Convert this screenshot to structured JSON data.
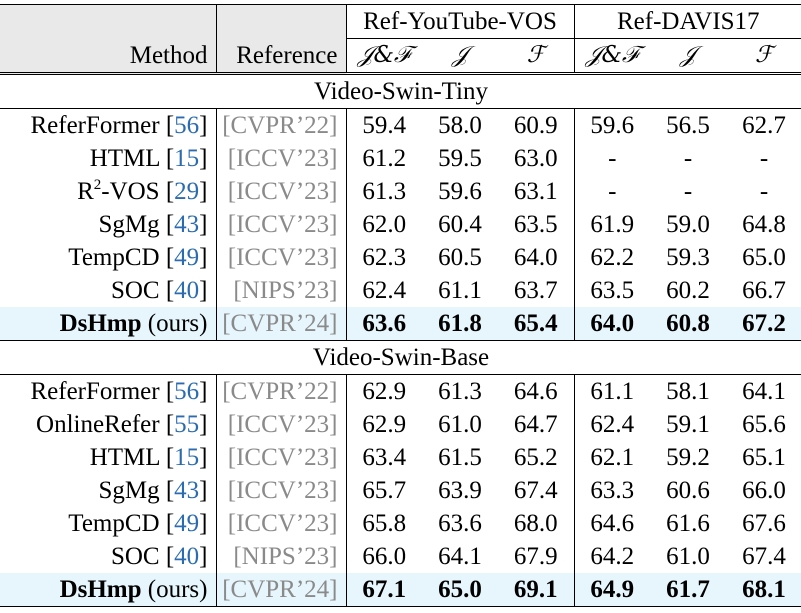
{
  "header": {
    "method": "Method",
    "reference": "Reference",
    "datasets": [
      "Ref-YouTube-VOS",
      "Ref-DAVIS17"
    ],
    "metrics": [
      "𝒥&ℱ",
      "𝒥",
      "ℱ",
      "𝒥&ℱ",
      "𝒥",
      "ℱ"
    ]
  },
  "groups": [
    {
      "label": "Video-Swin-Tiny",
      "rows": [
        {
          "method": "ReferFormer",
          "cite": "56",
          "ref": "[CVPR’22]",
          "vals": [
            "59.4",
            "58.0",
            "60.9",
            "59.6",
            "56.5",
            "62.7"
          ]
        },
        {
          "method": "HTML",
          "cite": "15",
          "ref": "[ICCV’23]",
          "vals": [
            "61.2",
            "59.5",
            "63.0",
            "-",
            "-",
            "-"
          ]
        },
        {
          "method_pre": "R",
          "method_sup": "2",
          "method": "-VOS",
          "cite": "29",
          "ref": "[ICCV’23]",
          "vals": [
            "61.3",
            "59.6",
            "63.1",
            "-",
            "-",
            "-"
          ]
        },
        {
          "method": "SgMg",
          "cite": "43",
          "ref": "[ICCV’23]",
          "vals": [
            "62.0",
            "60.4",
            "63.5",
            "61.9",
            "59.0",
            "64.8"
          ]
        },
        {
          "method": "TempCD",
          "cite": "49",
          "ref": "[ICCV’23]",
          "vals": [
            "62.3",
            "60.5",
            "64.0",
            "62.2",
            "59.3",
            "65.0"
          ]
        },
        {
          "method": "SOC",
          "cite": "40",
          "ref": "[NIPS’23]",
          "vals": [
            "62.4",
            "61.1",
            "63.7",
            "63.5",
            "60.2",
            "66.7"
          ]
        }
      ],
      "ours": {
        "method": "DsHmp",
        "suffix": "(ours)",
        "ref": "[CVPR’24]",
        "vals": [
          "63.6",
          "61.8",
          "65.4",
          "64.0",
          "60.8",
          "67.2"
        ]
      }
    },
    {
      "label": "Video-Swin-Base",
      "rows": [
        {
          "method": "ReferFormer",
          "cite": "56",
          "ref": "[CVPR’22]",
          "vals": [
            "62.9",
            "61.3",
            "64.6",
            "61.1",
            "58.1",
            "64.1"
          ]
        },
        {
          "method": "OnlineRefer",
          "cite": "55",
          "ref": "[ICCV’23]",
          "vals": [
            "62.9",
            "61.0",
            "64.7",
            "62.4",
            "59.1",
            "65.6"
          ]
        },
        {
          "method": "HTML",
          "cite": "15",
          "ref": "[ICCV’23]",
          "vals": [
            "63.4",
            "61.5",
            "65.2",
            "62.1",
            "59.2",
            "65.1"
          ]
        },
        {
          "method": "SgMg",
          "cite": "43",
          "ref": "[ICCV’23]",
          "vals": [
            "65.7",
            "63.9",
            "67.4",
            "63.3",
            "60.6",
            "66.0"
          ]
        },
        {
          "method": "TempCD",
          "cite": "49",
          "ref": "[ICCV’23]",
          "vals": [
            "65.8",
            "63.6",
            "68.0",
            "64.6",
            "61.6",
            "67.6"
          ]
        },
        {
          "method": "SOC",
          "cite": "40",
          "ref": "[NIPS’23]",
          "vals": [
            "66.0",
            "64.1",
            "67.9",
            "64.2",
            "61.0",
            "67.4"
          ]
        }
      ],
      "ours": {
        "method": "DsHmp",
        "suffix": "(ours)",
        "ref": "[CVPR’24]",
        "vals": [
          "67.1",
          "65.0",
          "69.1",
          "64.9",
          "61.7",
          "68.1"
        ]
      }
    }
  ]
}
